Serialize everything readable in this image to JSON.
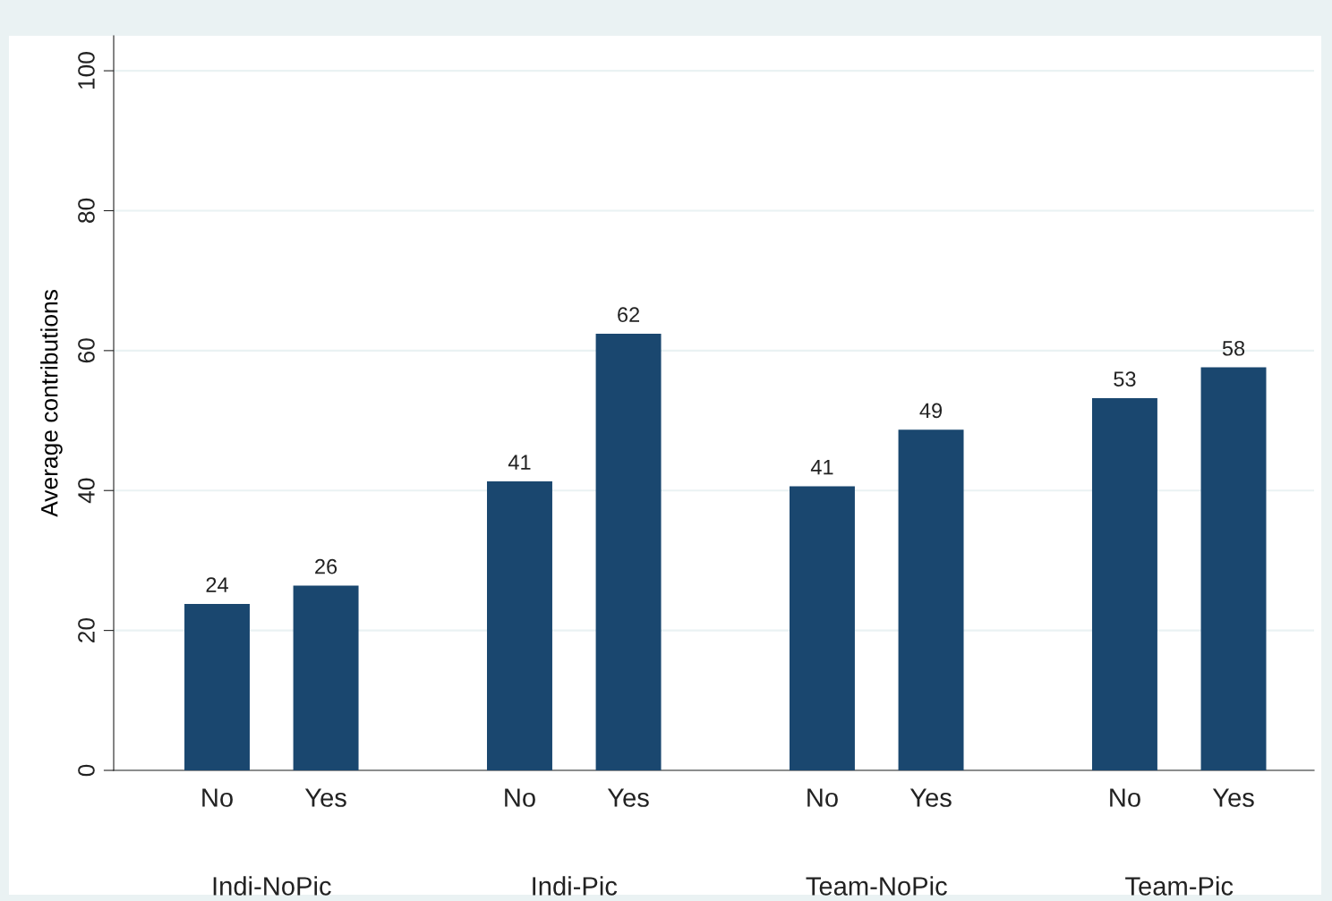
{
  "chart_data": {
    "type": "bar",
    "ylabel": "Average contributions",
    "categories": [
      "No",
      "Yes",
      "No",
      "Yes",
      "No",
      "Yes",
      "No",
      "Yes"
    ],
    "values": [
      23.8,
      26.4,
      41.3,
      62.4,
      40.6,
      48.7,
      53.2,
      57.6
    ],
    "value_labels": [
      "24",
      "26",
      "41",
      "62",
      "41",
      "49",
      "53",
      "58"
    ],
    "color": "#1a476f",
    "annotations": [
      "Indi-NoPic",
      "Indi-Pic",
      "Team-NoPic",
      "Team-Pic"
    ],
    "ylim": [
      0,
      105
    ],
    "yticks": [
      0,
      20,
      40,
      60,
      80,
      100
    ],
    "grid": "y",
    "legend": false
  }
}
